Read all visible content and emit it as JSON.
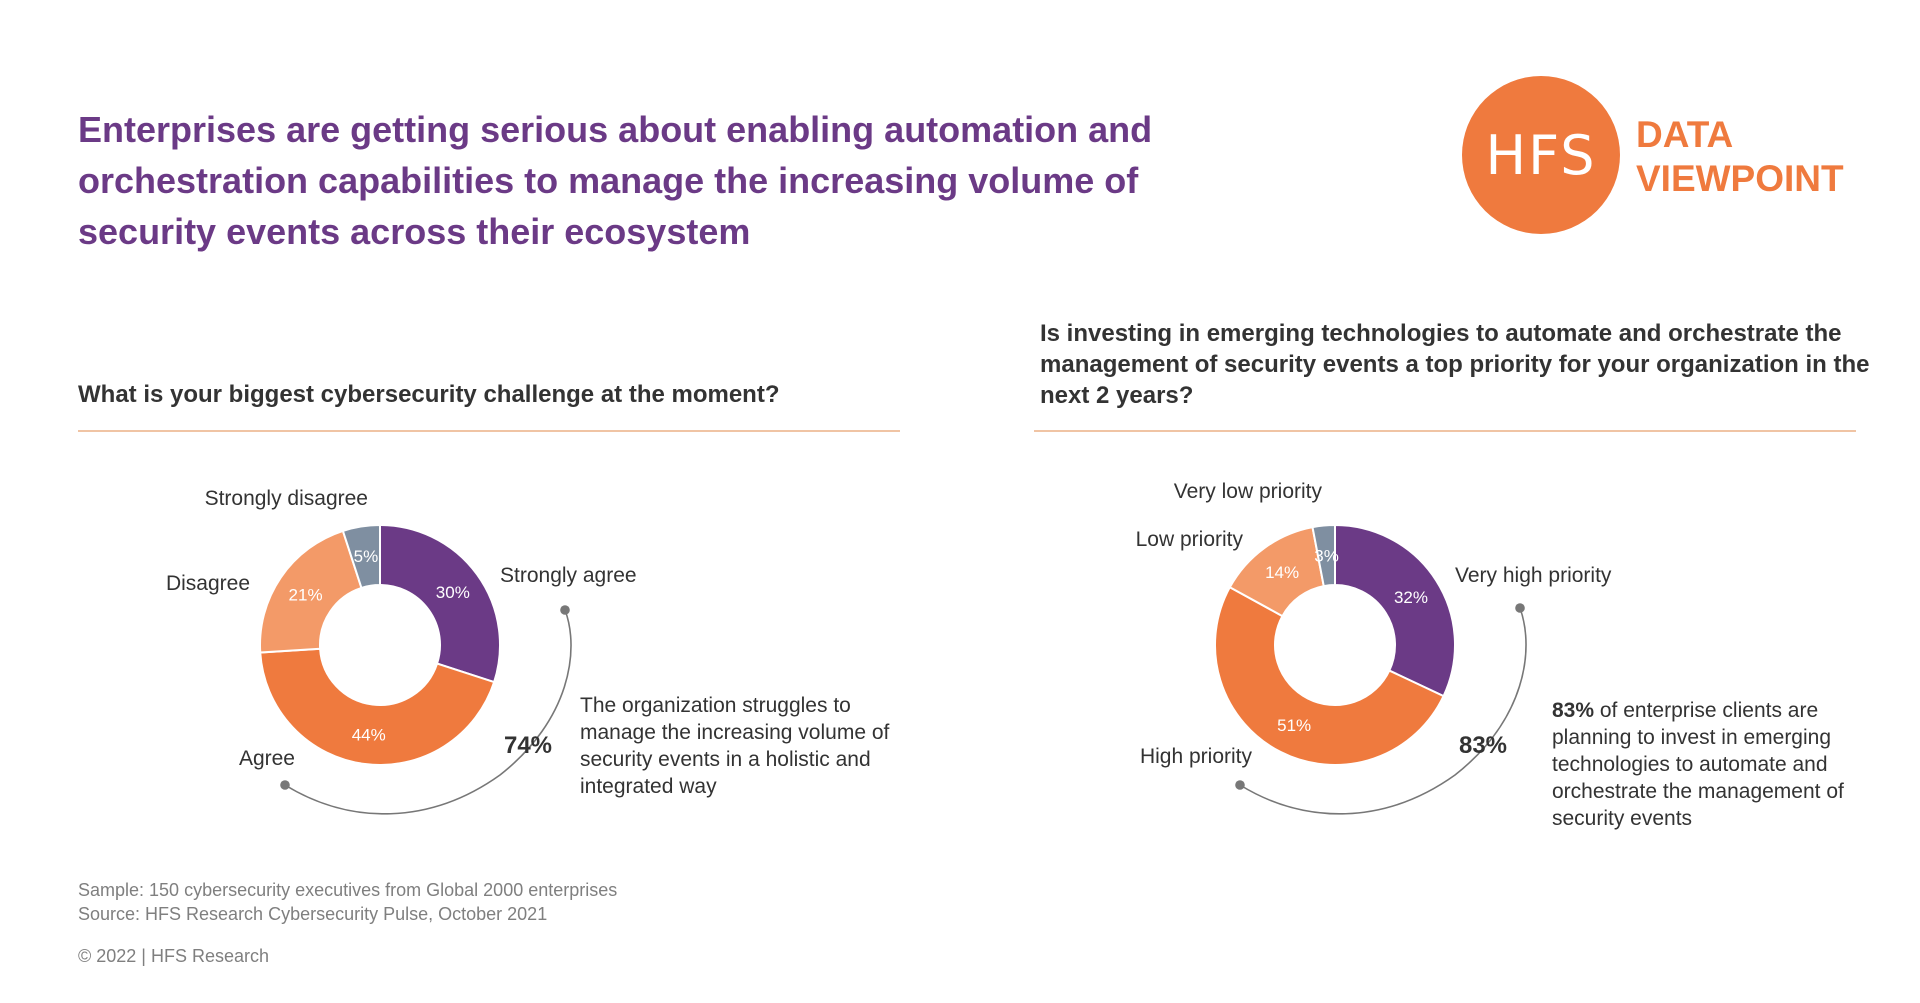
{
  "headline": "Enterprises are getting serious about enabling automation and orchestration capabilities to manage the increasing volume of security events across their ecosystem",
  "logo": {
    "mark": "HFS",
    "tag_line1": "DATA",
    "tag_line2": "VIEWPOINT"
  },
  "colors": {
    "purple": "#6b3a86",
    "dark_orange": "#ef7a3e",
    "light_orange": "#f39a68",
    "gray_blue": "#7f8fa1",
    "rule": "#f0c4a4"
  },
  "left_panel": {
    "question": "What is your biggest cybersecurity challenge at the moment?",
    "total_label": "74%",
    "note": "The organization struggles to manage the increasing volume of security events in a holistic and integrated way"
  },
  "right_panel": {
    "question": "Is investing in emerging technologies to automate and orchestrate the management of security events a top priority for your organization in the next 2 years?",
    "total_label": "83%",
    "note_bold": "83%",
    "note_rest": " of enterprise clients are planning to invest in emerging technologies to automate and orchestrate the management of security events"
  },
  "chart_data": [
    {
      "type": "pie",
      "title": "What is your biggest cybersecurity challenge at the moment?",
      "categories": [
        "Strongly agree",
        "Agree",
        "Disagree",
        "Strongly disagree"
      ],
      "values": [
        30,
        44,
        21,
        5
      ],
      "value_labels": [
        "30%",
        "44%",
        "21%",
        "5%"
      ],
      "colors": [
        "#6b3a86",
        "#ef7a3e",
        "#f39a68",
        "#7f8fa1"
      ],
      "donut": true
    },
    {
      "type": "pie",
      "title": "Is investing in emerging technologies to automate and orchestrate the management of security events a top priority for your organization in the next 2 years?",
      "categories": [
        "Very high priority",
        "High priority",
        "Low priority",
        "Very low priority"
      ],
      "values": [
        32,
        51,
        14,
        3
      ],
      "value_labels": [
        "32%",
        "51%",
        "14%",
        "3%"
      ],
      "colors": [
        "#6b3a86",
        "#ef7a3e",
        "#f39a68",
        "#7f8fa1"
      ],
      "donut": true
    }
  ],
  "footer": {
    "sample": "Sample: 150 cybersecurity executives from Global 2000 enterprises",
    "source": "Source: HFS Research Cybersecurity Pulse, October 2021",
    "copyright": "© 2022 | HFS Research"
  }
}
